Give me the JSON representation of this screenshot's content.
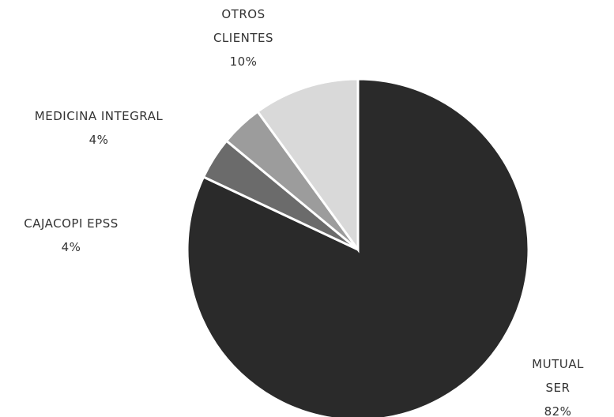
{
  "chart_data": {
    "type": "pie",
    "categories": [
      "MUTUAL SER",
      "CAJACOPI EPSS",
      "MEDICINA INTEGRAL",
      "OTROS CLIENTES"
    ],
    "values": [
      82,
      4,
      4,
      10
    ],
    "value_labels": [
      "82%",
      "4%",
      "4%",
      "10%"
    ],
    "colors": [
      "#2a2a2a",
      "#6b6b6b",
      "#9c9c9c",
      "#d9d9d9"
    ]
  }
}
